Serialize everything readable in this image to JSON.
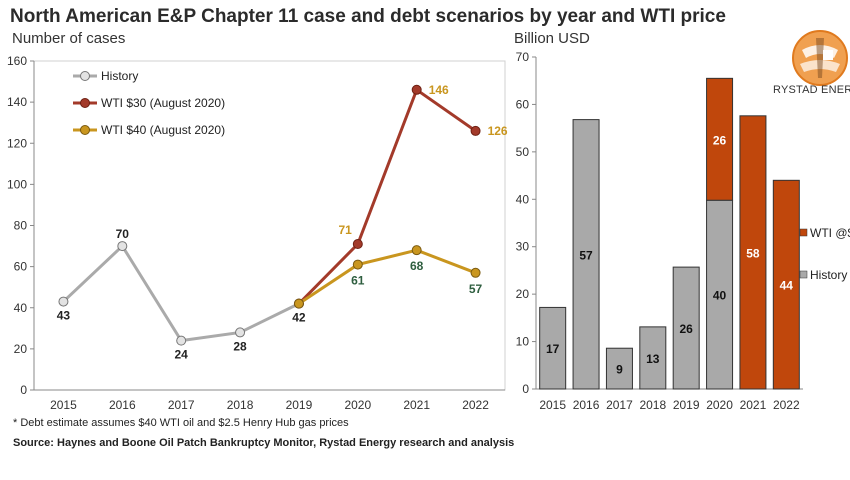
{
  "title": "North American E&P Chapter 11 case and debt scenarios by year and WTI price",
  "brand": "RYSTAD ENERGY",
  "footnote": "* Debt estimate assumes $40 WTI oil and $2.5 Henry Hub gas prices",
  "source": "Source: Haynes and Boone Oil Patch Bankruptcy Monitor, Rystad Energy research and analysis",
  "colors": {
    "history": "#aaaaaa",
    "wti30": "#a33a2a",
    "wti40": "#c9961f",
    "wti30_bar": "#c0470c",
    "label_green": "#2e5e3f"
  },
  "chart_data": [
    {
      "type": "line",
      "ylabel": "Number of cases",
      "x": [
        "2015",
        "2016",
        "2017",
        "2018",
        "2019",
        "2020",
        "2021",
        "2022"
      ],
      "ylim": [
        0,
        160
      ],
      "yticks": [
        "0",
        "20",
        "40",
        "60",
        "80",
        "100",
        "120",
        "140",
        "160"
      ],
      "series": [
        {
          "name": "History",
          "x": [
            "2015",
            "2016",
            "2017",
            "2018",
            "2019"
          ],
          "values": [
            43,
            70,
            24,
            28,
            42
          ],
          "labels": [
            "43",
            "70",
            "24",
            "28",
            "42"
          ]
        },
        {
          "name": "WTI $30 (August 2020)",
          "x": [
            "2019",
            "2020",
            "2021",
            "2022"
          ],
          "values": [
            42,
            71,
            146,
            126
          ],
          "labels": [
            "",
            "71",
            "146",
            "126"
          ]
        },
        {
          "name": "WTI $40 (August 2020)",
          "x": [
            "2019",
            "2020",
            "2021",
            "2022"
          ],
          "values": [
            42,
            61,
            68,
            57
          ],
          "labels": [
            "",
            "61",
            "68",
            "57"
          ]
        }
      ]
    },
    {
      "type": "bar",
      "ylabel": "Billion USD",
      "categories": [
        "2015",
        "2016",
        "2017",
        "2018",
        "2019",
        "2020",
        "2021",
        "2022"
      ],
      "ylim": [
        0,
        70
      ],
      "yticks": [
        "0",
        "10",
        "20",
        "30",
        "40",
        "50",
        "60",
        "70"
      ],
      "series": [
        {
          "name": "History",
          "values": [
            17.2,
            56.8,
            8.6,
            13.1,
            25.7,
            39.8,
            0,
            0
          ],
          "labels": [
            "17",
            "57",
            "9",
            "13",
            "26",
            "40",
            "",
            ""
          ]
        },
        {
          "name": "WTI @$",
          "values": [
            0,
            0,
            0,
            0,
            0,
            25.7,
            57.6,
            44.0
          ],
          "labels": [
            "",
            "",
            "",
            "",
            "",
            "26",
            "58",
            "44"
          ]
        }
      ],
      "legend": [
        "WTI @$",
        "History"
      ]
    }
  ]
}
